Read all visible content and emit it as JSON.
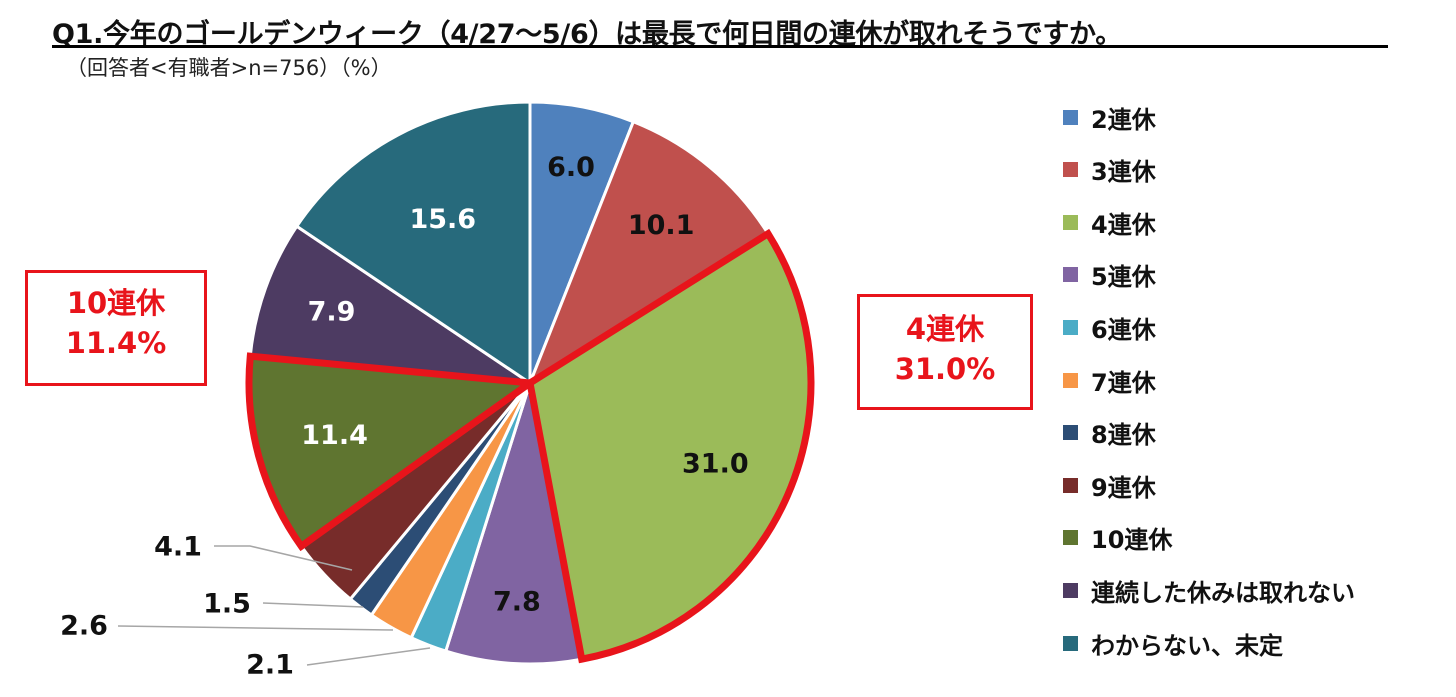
{
  "title": "Q1.今年のゴールデンウィーク（4/27～5/6）は最長で何日間の連休が取れそうですか。",
  "subtitle": "（回答者<有職者>n=756）（%）",
  "callouts": {
    "left": {
      "line1": "10連休",
      "line2": "11.4%"
    },
    "right": {
      "line1": "4連休",
      "line2": "31.0%"
    }
  },
  "chart_data": {
    "type": "pie",
    "categories": [
      "2連休",
      "3連休",
      "4連休",
      "5連休",
      "6連休",
      "7連休",
      "8連休",
      "9連休",
      "10連休",
      "連続した休みは取れない",
      "わからない、未定"
    ],
    "values": [
      6.0,
      10.1,
      31.0,
      7.8,
      2.1,
      2.6,
      1.5,
      4.1,
      11.4,
      7.9,
      15.6
    ],
    "value_labels": [
      "6.0",
      "10.1",
      "31.0",
      "7.8",
      "2.1",
      "2.6",
      "1.5",
      "4.1",
      "11.4",
      "7.9",
      "15.6"
    ],
    "colors": [
      "#4f81bd",
      "#c0504d",
      "#9bbb59",
      "#8064a2",
      "#4bacc6",
      "#f79646",
      "#2c4d75",
      "#772c2a",
      "#5f7530",
      "#4d3b62",
      "#276a7c"
    ],
    "start_angle": "12 o'clock",
    "direction": "clockwise",
    "highlighted": [
      "4連休",
      "10連休"
    ],
    "highlight_color": "#e8141b",
    "legend_position": "right"
  }
}
